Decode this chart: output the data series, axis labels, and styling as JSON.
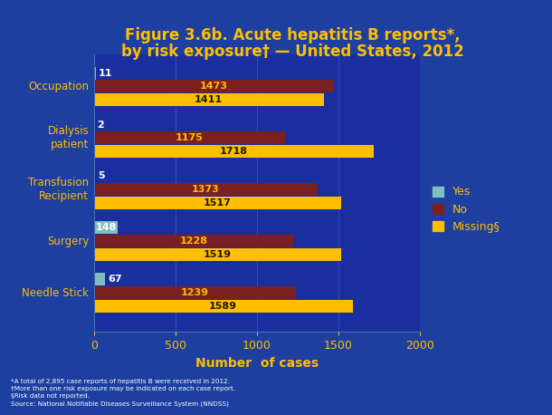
{
  "title_line1": "Figure 3.6b. Acute hepatitis B reports*,",
  "title_line2": "by risk exposure† — United States, 2012",
  "categories": [
    "Occupation",
    "Dialysis\npatient",
    "Transfusion\nRecipient",
    "Surgery",
    "Needle Stick"
  ],
  "yes_values": [
    11,
    2,
    5,
    148,
    67
  ],
  "no_values": [
    1473,
    1175,
    1373,
    1228,
    1239
  ],
  "missing_values": [
    1411,
    1718,
    1517,
    1519,
    1589
  ],
  "yes_color": "#7fbfbf",
  "no_color": "#7b2020",
  "missing_color": "#ffbe00",
  "bar_height": 0.26,
  "xlim": [
    0,
    2000
  ],
  "xticks": [
    0,
    500,
    1000,
    1500,
    2000
  ],
  "xlabel": "Number  of cases",
  "bg_outer": "#1c3fa0",
  "bg_chart": "#1a2e9e",
  "title_color": "#ffbe00",
  "text_color": "#ffffff",
  "tick_color": "#ffbe00",
  "label_yes_color": "#ffffff",
  "label_no_color": "#ffbe00",
  "label_missing_color": "#1a1a00",
  "legend_label_color": "#ffbe00",
  "footnote_line1": "*A total of 2,895 case reports of hepatitis B were received in 2012.",
  "footnote_line2": "†More than one risk exposure may be indicated on each case report.",
  "footnote_line3": "§Risk data not reported.",
  "footnote_line4": "Source: National Notifiable Diseases Surveillance System (NNDSS)"
}
